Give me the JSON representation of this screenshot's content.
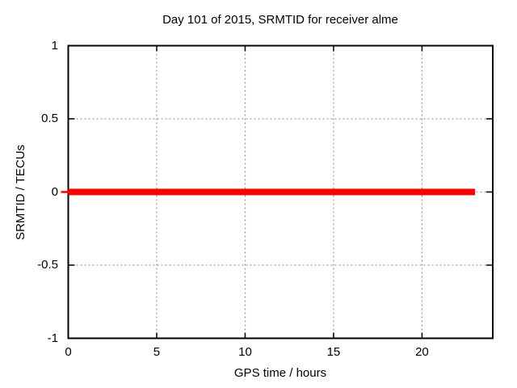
{
  "window": {
    "background_color": "#ffffff"
  },
  "chart_data": {
    "type": "line",
    "title": "Day 101 of 2015, SRMTID for receiver alme",
    "xlabel": "GPS time / hours",
    "ylabel": "SRMTID / TECUs",
    "xlim": [
      0,
      24
    ],
    "ylim": [
      -1,
      1
    ],
    "xticks": [
      0,
      5,
      10,
      15,
      20
    ],
    "yticks": [
      -1,
      -0.5,
      0,
      0.5,
      1
    ],
    "grid": {
      "enabled": true,
      "style": "dashed",
      "color": "#999999"
    },
    "border_color": "#000000",
    "tick_color": "#000000",
    "legend": {
      "visible": false
    },
    "series": [
      {
        "name": "SRMTID",
        "color": "#ff0000",
        "line_width": 8,
        "x": [
          0,
          23
        ],
        "y": [
          0,
          0
        ]
      }
    ]
  }
}
